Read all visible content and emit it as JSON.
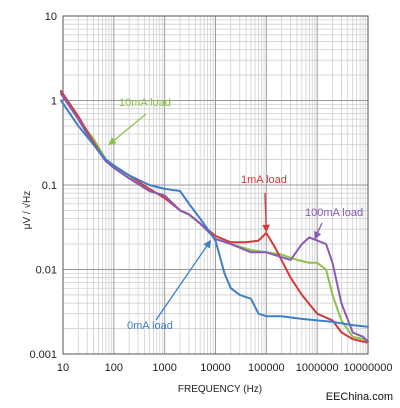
{
  "chart_data": {
    "type": "line",
    "xlabel": "FREQUENCY (Hz)",
    "ylabel": "μV / √Hz",
    "xscale": "log",
    "yscale": "log",
    "xlim": [
      10,
      10000000
    ],
    "ylim": [
      0.001,
      10
    ],
    "grid": true,
    "legend": "none",
    "xticks": [
      {
        "value": 10,
        "label": "10"
      },
      {
        "value": 100,
        "label": "100"
      },
      {
        "value": 1000,
        "label": "1000"
      },
      {
        "value": 10000,
        "label": "10000"
      },
      {
        "value": 100000,
        "label": "100000"
      },
      {
        "value": 1000000,
        "label": "1000000"
      },
      {
        "value": 10000000,
        "label": "10000000"
      }
    ],
    "yticks": [
      {
        "value": 0.001,
        "label": "0.001"
      },
      {
        "value": 0.01,
        "label": "0.01"
      },
      {
        "value": 0.1,
        "label": "0.1"
      },
      {
        "value": 1,
        "label": "1"
      },
      {
        "value": 10,
        "label": "10"
      }
    ],
    "series": [
      {
        "name": "10mA load",
        "color": "#8dc24a",
        "points": [
          [
            8,
            1.25
          ],
          [
            20,
            0.6
          ],
          [
            40,
            0.35
          ],
          [
            70,
            0.2
          ],
          [
            100,
            0.16
          ],
          [
            200,
            0.12
          ],
          [
            500,
            0.085
          ],
          [
            1000,
            0.075
          ],
          [
            2000,
            0.05
          ],
          [
            3000,
            0.045
          ],
          [
            5000,
            0.035
          ],
          [
            10000,
            0.023
          ],
          [
            20000,
            0.02
          ],
          [
            50000,
            0.017
          ],
          [
            100000,
            0.016
          ],
          [
            200000,
            0.015
          ],
          [
            400000,
            0.013
          ],
          [
            700000,
            0.012
          ],
          [
            1000000,
            0.012
          ],
          [
            1500000,
            0.01
          ],
          [
            2000000,
            0.005
          ],
          [
            3000000,
            0.0025
          ],
          [
            5000000,
            0.0016
          ],
          [
            8000000,
            0.0015
          ],
          [
            10000000,
            0.0013
          ]
        ]
      },
      {
        "name": "1mA load",
        "color": "#d23b3b",
        "points": [
          [
            8,
            1.3
          ],
          [
            20,
            0.65
          ],
          [
            40,
            0.32
          ],
          [
            70,
            0.19
          ],
          [
            100,
            0.17
          ],
          [
            200,
            0.13
          ],
          [
            500,
            0.09
          ],
          [
            1000,
            0.07
          ],
          [
            2000,
            0.05
          ],
          [
            3000,
            0.045
          ],
          [
            5000,
            0.035
          ],
          [
            10000,
            0.025
          ],
          [
            20000,
            0.021
          ],
          [
            40000,
            0.021
          ],
          [
            70000,
            0.022
          ],
          [
            100000,
            0.027
          ],
          [
            150000,
            0.018
          ],
          [
            300000,
            0.008
          ],
          [
            500000,
            0.005
          ],
          [
            1000000,
            0.003
          ],
          [
            2000000,
            0.0025
          ],
          [
            3000000,
            0.0018
          ],
          [
            5000000,
            0.0015
          ],
          [
            8000000,
            0.0014
          ],
          [
            10000000,
            0.0014
          ]
        ]
      },
      {
        "name": "100mA load",
        "color": "#8a5bb5",
        "points": [
          [
            8,
            1.2
          ],
          [
            20,
            0.6
          ],
          [
            40,
            0.3
          ],
          [
            70,
            0.19
          ],
          [
            100,
            0.16
          ],
          [
            200,
            0.12
          ],
          [
            500,
            0.085
          ],
          [
            1000,
            0.075
          ],
          [
            2000,
            0.05
          ],
          [
            3000,
            0.045
          ],
          [
            5000,
            0.035
          ],
          [
            10000,
            0.023
          ],
          [
            20000,
            0.02
          ],
          [
            50000,
            0.016
          ],
          [
            100000,
            0.016
          ],
          [
            200000,
            0.014
          ],
          [
            300000,
            0.013
          ],
          [
            500000,
            0.02
          ],
          [
            700000,
            0.024
          ],
          [
            1000000,
            0.022
          ],
          [
            1500000,
            0.02
          ],
          [
            2000000,
            0.012
          ],
          [
            3000000,
            0.004
          ],
          [
            5000000,
            0.0018
          ],
          [
            8000000,
            0.0016
          ],
          [
            10000000,
            0.0014
          ]
        ]
      },
      {
        "name": "0mA load",
        "color": "#3f7fc6",
        "points": [
          [
            8,
            1.0
          ],
          [
            20,
            0.5
          ],
          [
            40,
            0.3
          ],
          [
            70,
            0.2
          ],
          [
            100,
            0.17
          ],
          [
            200,
            0.13
          ],
          [
            500,
            0.1
          ],
          [
            1000,
            0.09
          ],
          [
            2000,
            0.085
          ],
          [
            3000,
            0.06
          ],
          [
            5000,
            0.04
          ],
          [
            10000,
            0.022
          ],
          [
            15000,
            0.009
          ],
          [
            20000,
            0.006
          ],
          [
            30000,
            0.005
          ],
          [
            50000,
            0.0045
          ],
          [
            70000,
            0.003
          ],
          [
            100000,
            0.0028
          ],
          [
            200000,
            0.0028
          ],
          [
            500000,
            0.0026
          ],
          [
            1000000,
            0.0025
          ],
          [
            2000000,
            0.0024
          ],
          [
            5000000,
            0.0022
          ],
          [
            10000000,
            0.0021
          ]
        ]
      }
    ],
    "annotations": [
      {
        "text": "10mA load",
        "color": "#8dc24a",
        "point_to": [
          80,
          0.3
        ]
      },
      {
        "text": "1mA load",
        "color": "#d23b3b",
        "point_to": [
          100000,
          0.028
        ]
      },
      {
        "text": "100mA load",
        "color": "#8a5bb5",
        "point_to": [
          900000,
          0.023
        ]
      },
      {
        "text": "0mA load",
        "color": "#3f7fc6",
        "point_to": [
          8000,
          0.022
        ]
      }
    ]
  },
  "watermark": "EEChina.com"
}
